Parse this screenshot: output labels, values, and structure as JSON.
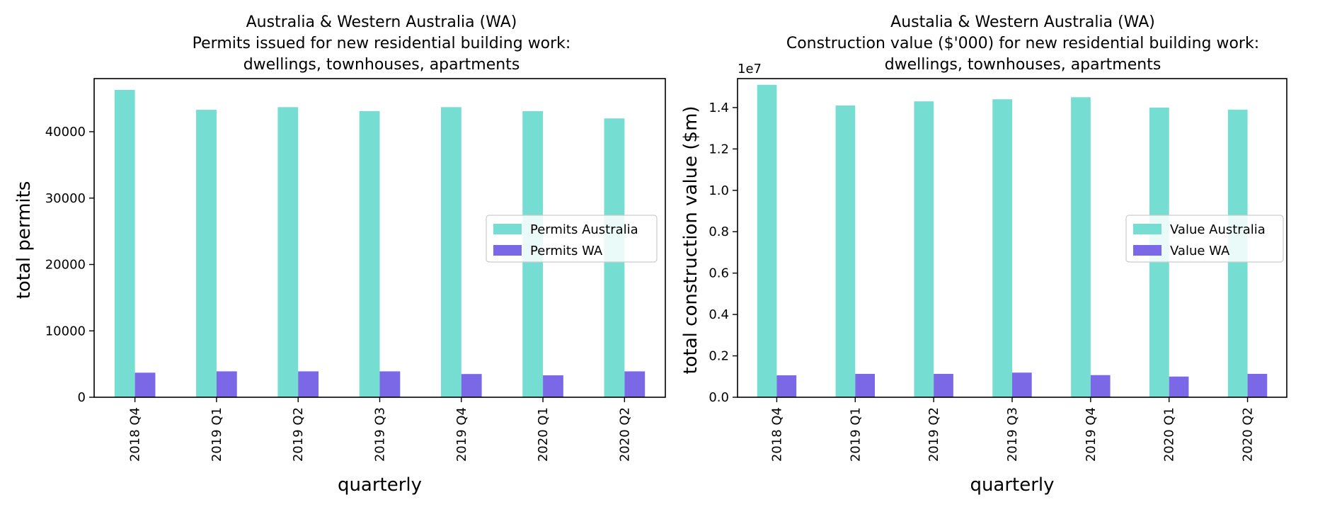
{
  "chart_data": [
    {
      "type": "bar",
      "title_lines": [
        "Australia & Western Australia (WA)",
        "Permits issued for new residential building work:",
        "dwellings, townhouses, apartments"
      ],
      "xlabel": "quarterly",
      "ylabel": "total permits",
      "categories": [
        "2018 Q4",
        "2019 Q1",
        "2019 Q2",
        "2019 Q3",
        "2019 Q4",
        "2020 Q1",
        "2020 Q2"
      ],
      "series": [
        {
          "name": "Permits Australia",
          "color": "#76ddd2",
          "values": [
            46300,
            43300,
            43700,
            43100,
            43700,
            43100,
            42000
          ]
        },
        {
          "name": "Permits WA",
          "color": "#7b68e6",
          "values": [
            3700,
            3900,
            3900,
            3900,
            3500,
            3300,
            3900
          ]
        }
      ],
      "ylim": [
        0,
        48000
      ],
      "yticks": [
        0,
        10000,
        20000,
        30000,
        40000
      ],
      "ytick_labels": [
        "0",
        "10000",
        "20000",
        "30000",
        "40000"
      ],
      "y_offset_label": "",
      "legend_position": "center-right",
      "grid": false
    },
    {
      "type": "bar",
      "title_lines": [
        "Austalia & Western Australia (WA)",
        "Construction value ($'000) for new residential building work:",
        "dwellings, townhouses, apartments"
      ],
      "xlabel": "quarterly",
      "ylabel": "total construction value ($m)",
      "categories": [
        "2018 Q4",
        "2019 Q1",
        "2019 Q2",
        "2019 Q3",
        "2019 Q4",
        "2020 Q1",
        "2020 Q2"
      ],
      "series": [
        {
          "name": "Value Australia",
          "color": "#76ddd2",
          "values": [
            15100000,
            14100000,
            14300000,
            14400000,
            14500000,
            14000000,
            13900000
          ]
        },
        {
          "name": "Value WA",
          "color": "#7b68e6",
          "values": [
            1060000,
            1130000,
            1130000,
            1190000,
            1070000,
            1000000,
            1130000
          ]
        }
      ],
      "ylim": [
        0,
        15400000
      ],
      "yticks": [
        0,
        2000000,
        4000000,
        6000000,
        8000000,
        10000000,
        12000000,
        14000000
      ],
      "ytick_labels": [
        "0.0",
        "0.2",
        "0.4",
        "0.6",
        "0.8",
        "1.0",
        "1.2",
        "1.4"
      ],
      "y_offset_label": "1e7",
      "legend_position": "center-right",
      "grid": false
    }
  ]
}
